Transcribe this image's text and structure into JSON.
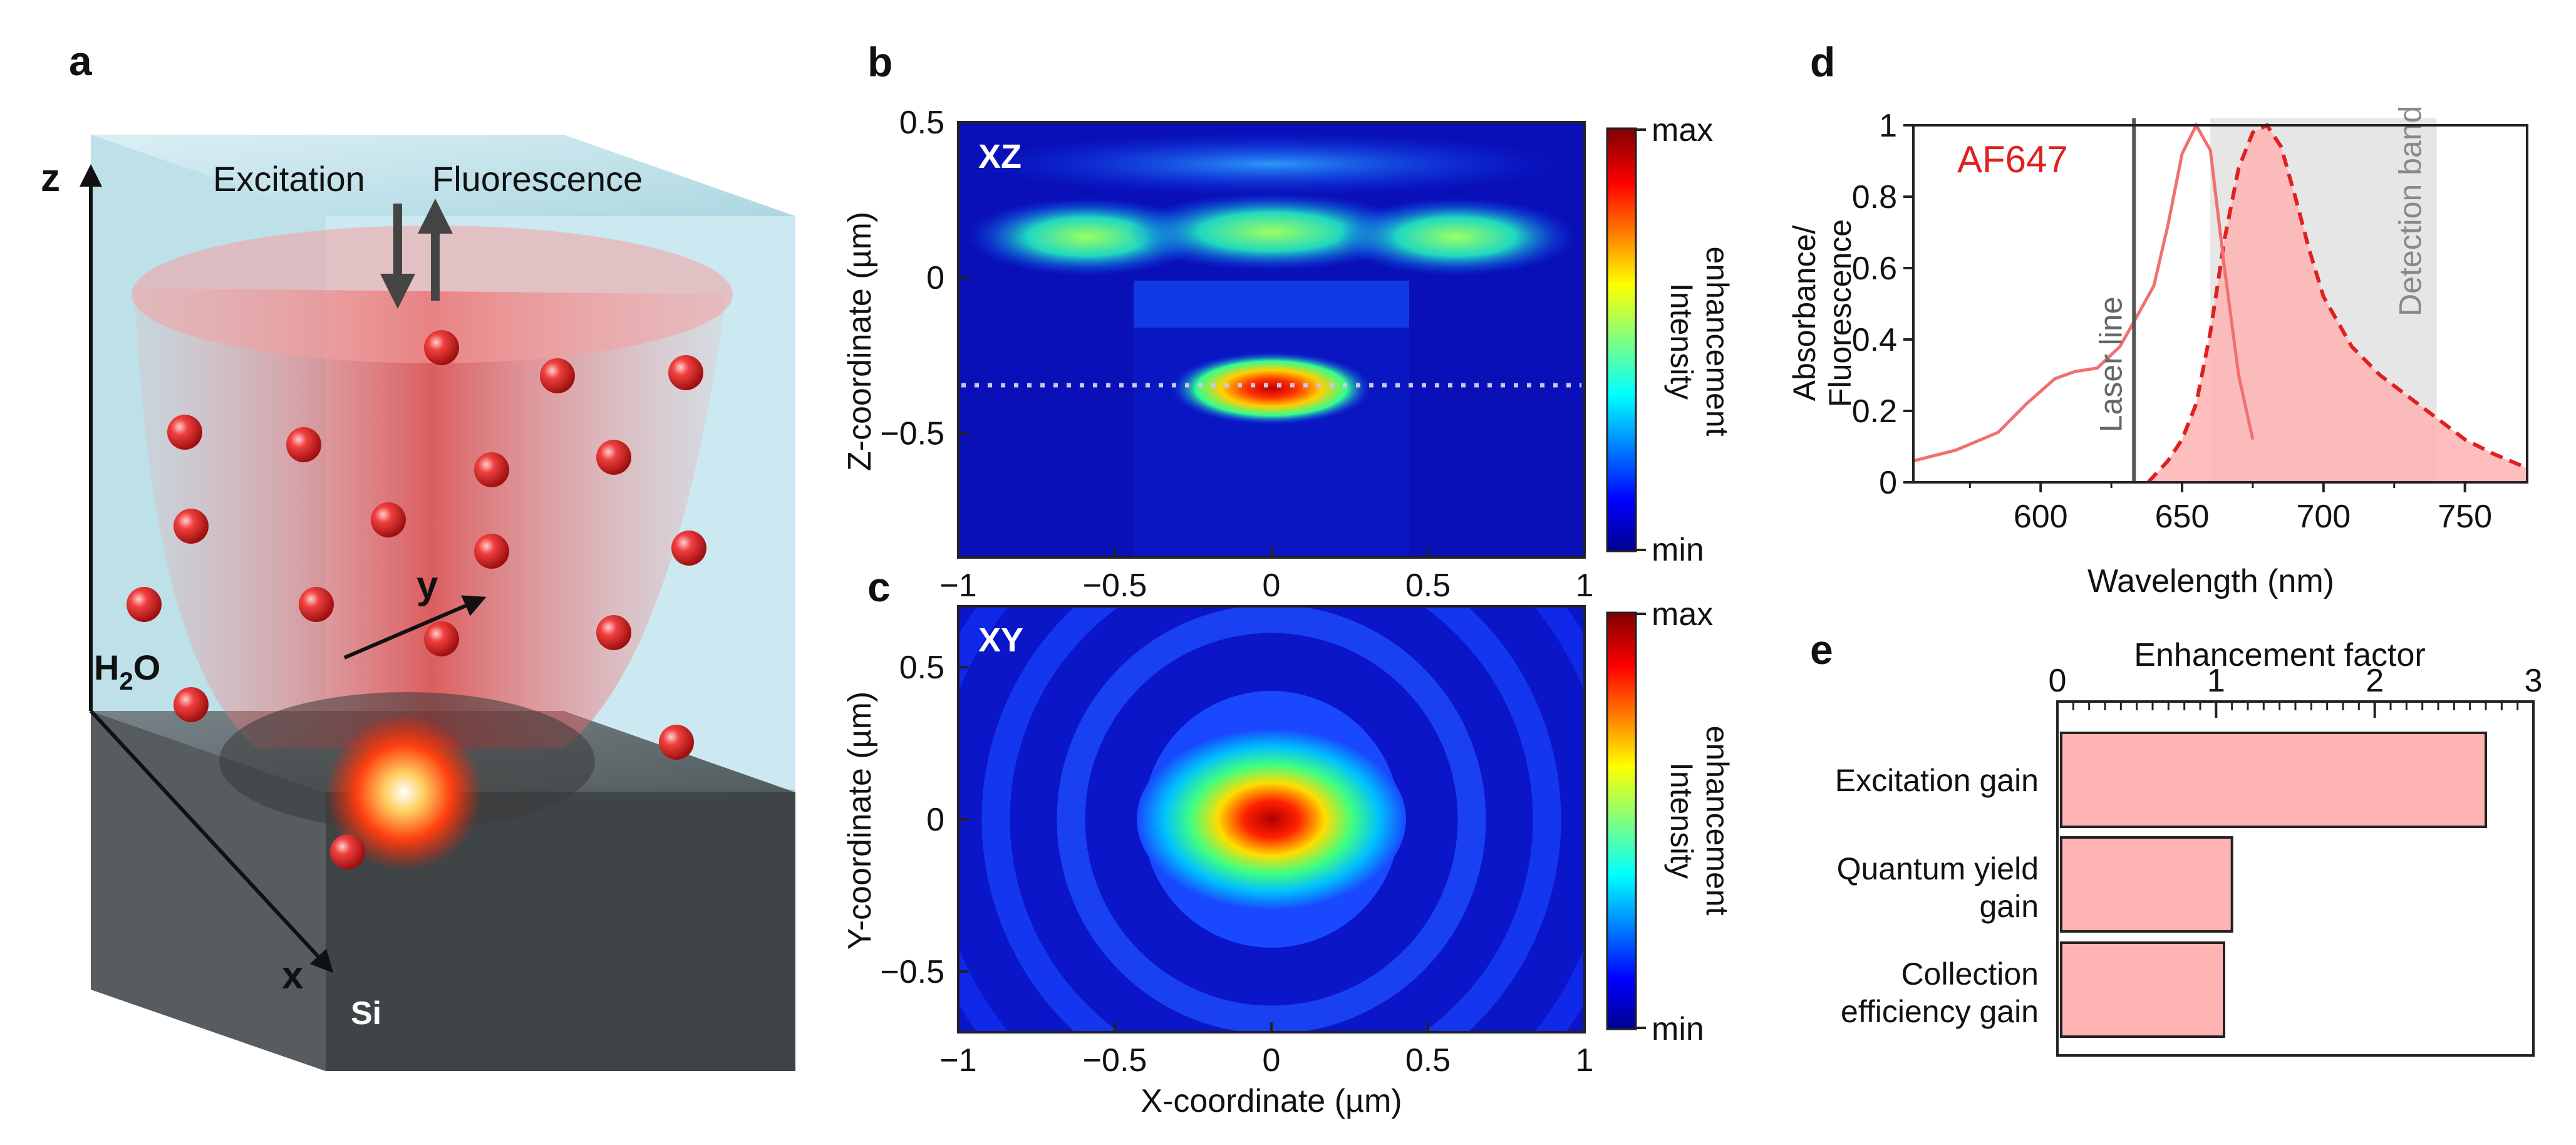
{
  "panel_labels": {
    "a": "a",
    "b": "b",
    "c": "c",
    "d": "d",
    "e": "e"
  },
  "panel_a": {
    "axis_z": "z",
    "axis_y": "y",
    "axis_x": "x",
    "excitation": "Excitation",
    "fluorescence": "Fluorescence",
    "water_main": "H",
    "water_sub": "2",
    "water_end": "O",
    "substrate": "Si"
  },
  "colors": {
    "accent_red": "#e02020",
    "pink_fill": "#ffb3b3",
    "grey_band": "#e6e6e6",
    "laser_line": "#555555",
    "water": "#bfe1ea",
    "silicon": "#4a4f52"
  },
  "chart_data": [
    {
      "id": "b",
      "type": "heatmap",
      "inset_label": "XZ",
      "xlabel": "",
      "ylabel": "Z-coordinate (µm)",
      "xlim": [
        -1,
        1
      ],
      "ylim": [
        -0.9,
        0.5
      ],
      "xticks": [
        "−1",
        "−0.5",
        "0",
        "0.5",
        "1"
      ],
      "yticks": [
        "0.5",
        "0",
        "−0.5"
      ],
      "colorbar": {
        "max": "max",
        "min": "min",
        "label_1": "Intensity",
        "label_2": "enhancement"
      },
      "dotted_line_z": -0.33
    },
    {
      "id": "c",
      "type": "heatmap",
      "inset_label": "XY",
      "xlabel": "X-coordinate (µm)",
      "ylabel": "Y-coordinate (µm)",
      "xlim": [
        -1,
        1
      ],
      "ylim": [
        -0.7,
        0.7
      ],
      "xticks": [
        "−1",
        "−0.5",
        "0",
        "0.5",
        "1"
      ],
      "yticks": [
        "0.5",
        "0",
        "−0.5"
      ],
      "colorbar": {
        "max": "max",
        "min": "min",
        "label_1": "Intensity",
        "label_2": "enhancement"
      }
    },
    {
      "id": "d",
      "type": "line",
      "title": "AF647",
      "xlabel": "Wavelength (nm)",
      "ylabel_1": "Absorbance/",
      "ylabel_2": "Fluorescence",
      "xlim": [
        555,
        772
      ],
      "ylim": [
        0,
        1
      ],
      "xticks": [
        "600",
        "650",
        "700",
        "750"
      ],
      "yticks": [
        "1",
        "0.8",
        "0.6",
        "0.4",
        "0.2",
        "0"
      ],
      "laser_line_nm": 633,
      "laser_label": "Laser line",
      "detection_band_nm": [
        660,
        740
      ],
      "detection_label": "Detection band",
      "series": [
        {
          "name": "Absorbance",
          "style": "solid",
          "x": [
            555,
            570,
            585,
            595,
            605,
            612,
            620,
            628,
            633,
            640,
            645,
            650,
            655,
            660,
            665,
            670,
            675
          ],
          "y": [
            0.06,
            0.09,
            0.14,
            0.22,
            0.29,
            0.31,
            0.32,
            0.38,
            0.45,
            0.55,
            0.72,
            0.92,
            1.0,
            0.93,
            0.6,
            0.3,
            0.12
          ]
        },
        {
          "name": "Fluorescence",
          "style": "dashed",
          "x": [
            638,
            645,
            650,
            655,
            660,
            665,
            670,
            675,
            680,
            685,
            690,
            695,
            700,
            710,
            720,
            730,
            740,
            750,
            760,
            772
          ],
          "y": [
            0.0,
            0.06,
            0.12,
            0.22,
            0.42,
            0.68,
            0.88,
            0.98,
            1.0,
            0.94,
            0.8,
            0.65,
            0.52,
            0.38,
            0.3,
            0.24,
            0.18,
            0.12,
            0.08,
            0.04
          ]
        }
      ]
    },
    {
      "id": "e",
      "type": "bar",
      "orientation": "horizontal",
      "title": "Enhancement factor",
      "xlim": [
        0,
        3
      ],
      "xticks": [
        "0",
        "1",
        "2",
        "3"
      ],
      "categories": [
        {
          "line1": "Excitation gain",
          "line2": ""
        },
        {
          "line1": "Quantum yield",
          "line2": "gain"
        },
        {
          "line1": "Collection",
          "line2": "efficiency gain"
        }
      ],
      "values": [
        2.7,
        1.1,
        1.05
      ]
    }
  ]
}
